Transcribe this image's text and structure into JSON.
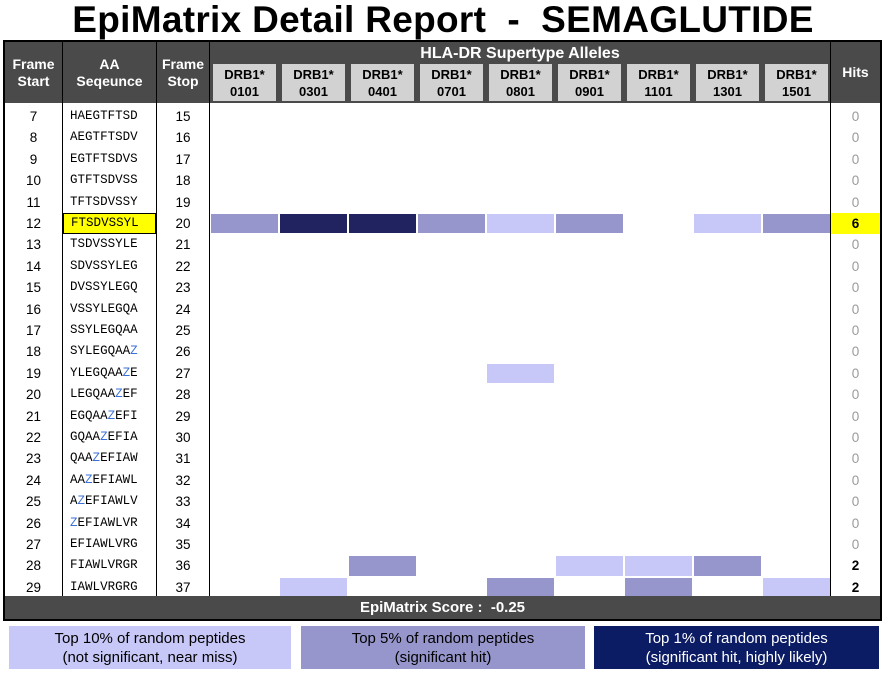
{
  "title": "EpiMatrix Detail Report  -  SEMAGLUTIDE",
  "header": {
    "frame_start_line1": "Frame",
    "frame_start_line2": "Start",
    "aa_line1": "AA",
    "aa_line2": "Seqeunce",
    "frame_stop_line1": "Frame",
    "frame_stop_line2": "Stop",
    "supertype": "HLA-DR Supertype Alleles",
    "hits": "Hits",
    "alleles": [
      {
        "l1": "DRB1*",
        "l2": "0101"
      },
      {
        "l1": "DRB1*",
        "l2": "0301"
      },
      {
        "l1": "DRB1*",
        "l2": "0401"
      },
      {
        "l1": "DRB1*",
        "l2": "0701"
      },
      {
        "l1": "DRB1*",
        "l2": "0801"
      },
      {
        "l1": "DRB1*",
        "l2": "0901"
      },
      {
        "l1": "DRB1*",
        "l2": "1101"
      },
      {
        "l1": "DRB1*",
        "l2": "1301"
      },
      {
        "l1": "DRB1*",
        "l2": "1501"
      }
    ]
  },
  "colors": {
    "level1": "#c8c8f8",
    "level2": "#9696cc",
    "level3": "#212360",
    "highlight": "#ffff00",
    "z_letter": "#3b6fd8"
  },
  "rows": [
    {
      "start": "7",
      "seq": "HAEGTFTSD",
      "stop": "15",
      "hits": "0",
      "cells": [
        0,
        0,
        0,
        0,
        0,
        0,
        0,
        0,
        0
      ]
    },
    {
      "start": "8",
      "seq": "AEGTFTSDV",
      "stop": "16",
      "hits": "0",
      "cells": [
        0,
        0,
        0,
        0,
        0,
        0,
        0,
        0,
        0
      ]
    },
    {
      "start": "9",
      "seq": "EGTFTSDVS",
      "stop": "17",
      "hits": "0",
      "cells": [
        0,
        0,
        0,
        0,
        0,
        0,
        0,
        0,
        0
      ]
    },
    {
      "start": "10",
      "seq": "GTFTSDVSS",
      "stop": "18",
      "hits": "0",
      "cells": [
        0,
        0,
        0,
        0,
        0,
        0,
        0,
        0,
        0
      ]
    },
    {
      "start": "11",
      "seq": "TFTSDVSSY",
      "stop": "19",
      "hits": "0",
      "cells": [
        0,
        0,
        0,
        0,
        0,
        0,
        0,
        0,
        0
      ]
    },
    {
      "start": "12",
      "seq": "FTSDVSSYL",
      "stop": "20",
      "hits": "6",
      "highlight": true,
      "cells": [
        2,
        3,
        3,
        2,
        1,
        2,
        0,
        1,
        2
      ]
    },
    {
      "start": "13",
      "seq": "TSDVSSYLE",
      "stop": "21",
      "hits": "0",
      "cells": [
        0,
        0,
        0,
        0,
        0,
        0,
        0,
        0,
        0
      ]
    },
    {
      "start": "14",
      "seq": "SDVSSYLEG",
      "stop": "22",
      "hits": "0",
      "cells": [
        0,
        0,
        0,
        0,
        0,
        0,
        0,
        0,
        0
      ]
    },
    {
      "start": "15",
      "seq": "DVSSYLEGQ",
      "stop": "23",
      "hits": "0",
      "cells": [
        0,
        0,
        0,
        0,
        0,
        0,
        0,
        0,
        0
      ]
    },
    {
      "start": "16",
      "seq": "VSSYLEGQA",
      "stop": "24",
      "hits": "0",
      "cells": [
        0,
        0,
        0,
        0,
        0,
        0,
        0,
        0,
        0
      ]
    },
    {
      "start": "17",
      "seq": "SSYLEGQAA",
      "stop": "25",
      "hits": "0",
      "cells": [
        0,
        0,
        0,
        0,
        0,
        0,
        0,
        0,
        0
      ]
    },
    {
      "start": "18",
      "seq": "SYLEGQAAZ",
      "stop": "26",
      "hits": "0",
      "cells": [
        0,
        0,
        0,
        0,
        0,
        0,
        0,
        0,
        0
      ]
    },
    {
      "start": "19",
      "seq": "YLEGQAAZE",
      "stop": "27",
      "hits": "0",
      "cells": [
        0,
        0,
        0,
        0,
        1,
        0,
        0,
        0,
        0
      ]
    },
    {
      "start": "20",
      "seq": "LEGQAAZEF",
      "stop": "28",
      "hits": "0",
      "cells": [
        0,
        0,
        0,
        0,
        0,
        0,
        0,
        0,
        0
      ]
    },
    {
      "start": "21",
      "seq": "EGQAAZEFI",
      "stop": "29",
      "hits": "0",
      "cells": [
        0,
        0,
        0,
        0,
        0,
        0,
        0,
        0,
        0
      ]
    },
    {
      "start": "22",
      "seq": "GQAAZEFIA",
      "stop": "30",
      "hits": "0",
      "cells": [
        0,
        0,
        0,
        0,
        0,
        0,
        0,
        0,
        0
      ]
    },
    {
      "start": "23",
      "seq": "QAAZEFIAW",
      "stop": "31",
      "hits": "0",
      "cells": [
        0,
        0,
        0,
        0,
        0,
        0,
        0,
        0,
        0
      ]
    },
    {
      "start": "24",
      "seq": "AAZEFIAWL",
      "stop": "32",
      "hits": "0",
      "cells": [
        0,
        0,
        0,
        0,
        0,
        0,
        0,
        0,
        0
      ]
    },
    {
      "start": "25",
      "seq": "AZEFIAWLV",
      "stop": "33",
      "hits": "0",
      "cells": [
        0,
        0,
        0,
        0,
        0,
        0,
        0,
        0,
        0
      ]
    },
    {
      "start": "26",
      "seq": "ZEFIAWLVR",
      "stop": "34",
      "hits": "0",
      "cells": [
        0,
        0,
        0,
        0,
        0,
        0,
        0,
        0,
        0
      ]
    },
    {
      "start": "27",
      "seq": "EFIAWLVRG",
      "stop": "35",
      "hits": "0",
      "cells": [
        0,
        0,
        0,
        0,
        0,
        0,
        0,
        0,
        0
      ]
    },
    {
      "start": "28",
      "seq": "FIAWLVRGR",
      "stop": "36",
      "hits": "2",
      "cells": [
        0,
        0,
        2,
        0,
        0,
        1,
        1,
        2,
        0
      ]
    },
    {
      "start": "29",
      "seq": "IAWLVRGRG",
      "stop": "37",
      "hits": "2",
      "cells": [
        0,
        1,
        0,
        0,
        2,
        0,
        2,
        0,
        1
      ]
    }
  ],
  "score": "EpiMatrix Score :  -0.25",
  "legend": [
    {
      "line1": "Top 10% of random peptides",
      "line2": "(not significant, near miss)",
      "bg": "#c8c8f8",
      "fg": "#000000"
    },
    {
      "line1": "Top 5% of random peptides",
      "line2": "(significant hit)",
      "bg": "#9696cc",
      "fg": "#000000"
    },
    {
      "line1": "Top 1% of random peptides",
      "line2": "(significant hit, highly likely)",
      "bg": "#0c1c64",
      "fg": "#ffffff"
    }
  ]
}
